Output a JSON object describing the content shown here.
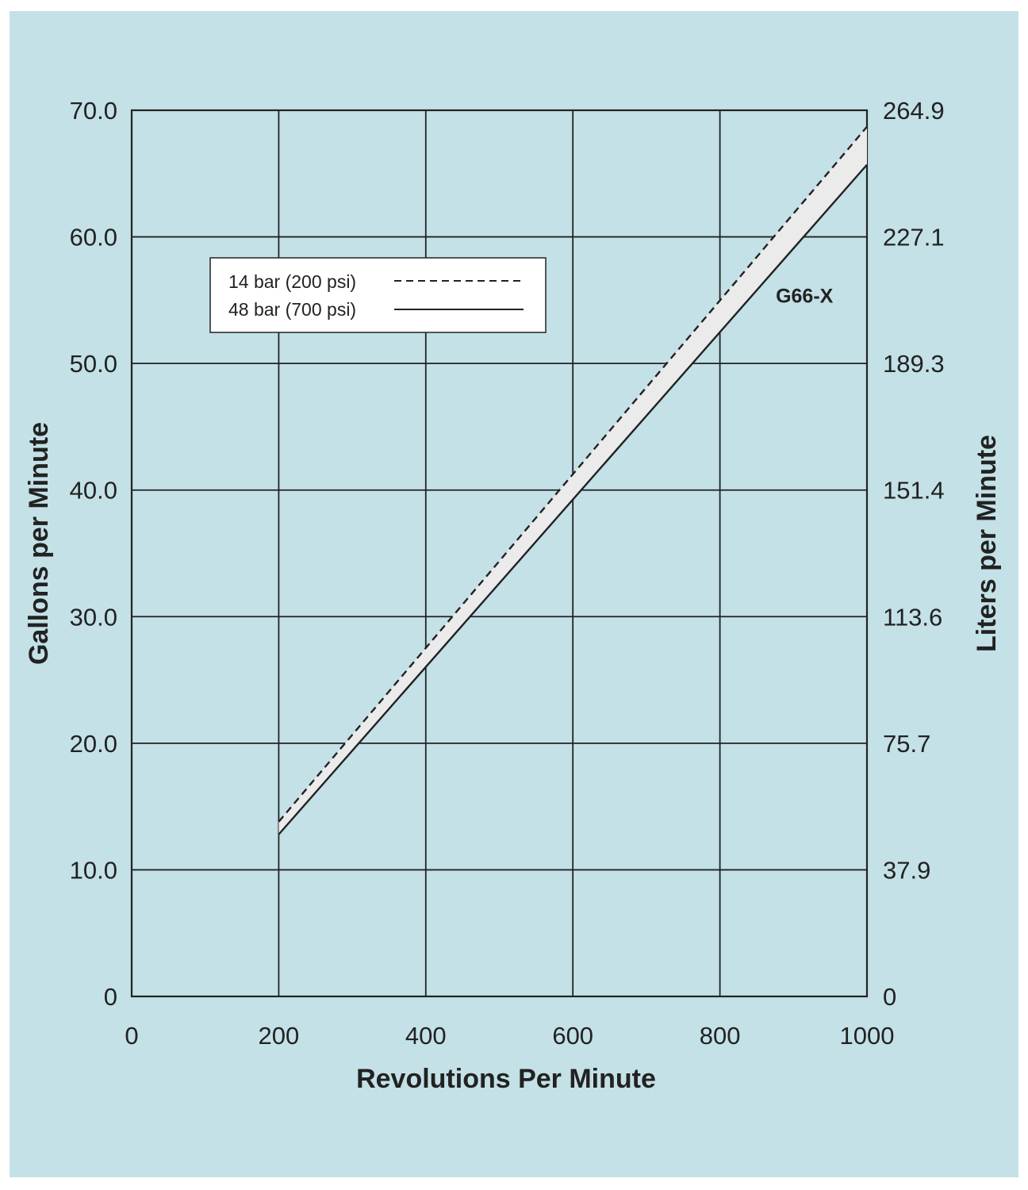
{
  "chart_data": {
    "type": "line",
    "background_color": "#c3e1e7",
    "band_fill_color": "#ebebeb",
    "line_color": "#222222",
    "grid": true,
    "xlabel": "Revolutions Per Minute",
    "ylabel": "Gallons per Minute",
    "y2label": "Liters per Minute",
    "xlim": [
      0,
      1000
    ],
    "ylim": [
      0,
      70
    ],
    "x_ticks": [
      0,
      200,
      400,
      600,
      800,
      1000
    ],
    "x_tick_labels": [
      "0",
      "200",
      "400",
      "600",
      "800",
      "1000"
    ],
    "y_ticks": [
      0,
      10,
      20,
      30,
      40,
      50,
      60,
      70
    ],
    "y_tick_labels": [
      "0",
      "10.0",
      "20.0",
      "30.0",
      "40.0",
      "50.0",
      "60.0",
      "70.0"
    ],
    "y2_tick_labels": [
      "0",
      "37.9",
      "75.7",
      "113.6",
      "151.4",
      "189.3",
      "227.1",
      "264.9"
    ],
    "legend_position": "top-left",
    "series": [
      {
        "name": "14 bar (200 psi)",
        "style": "dashed",
        "x": [
          200,
          1000
        ],
        "y": [
          13.8,
          68.7
        ]
      },
      {
        "name": "48 bar (700 psi)",
        "style": "solid",
        "x": [
          200,
          1000
        ],
        "y": [
          12.8,
          65.7
        ]
      }
    ],
    "annotations": [
      {
        "text": "G66-X",
        "x": 915,
        "y": 54.8
      }
    ]
  }
}
